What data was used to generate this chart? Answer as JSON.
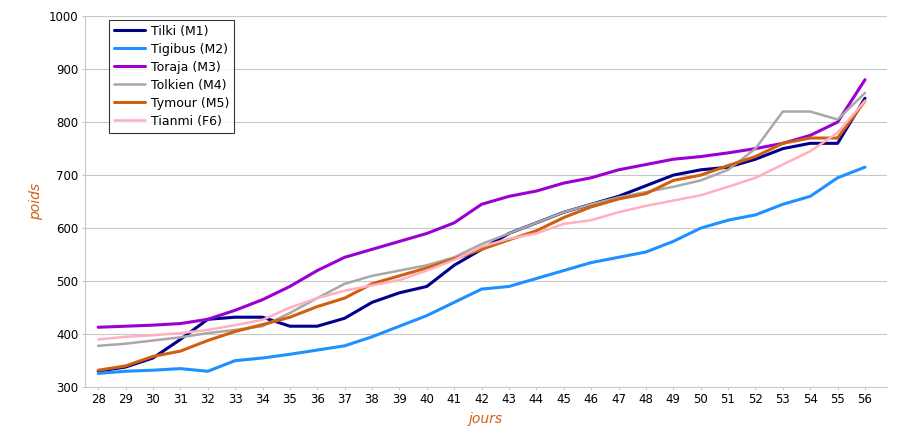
{
  "days": [
    28,
    29,
    30,
    31,
    32,
    33,
    34,
    35,
    36,
    37,
    38,
    39,
    40,
    41,
    42,
    43,
    44,
    45,
    46,
    47,
    48,
    49,
    50,
    51,
    52,
    53,
    54,
    55,
    56
  ],
  "Tilki_M1": [
    330,
    338,
    355,
    390,
    428,
    432,
    432,
    415,
    415,
    430,
    460,
    478,
    490,
    530,
    560,
    590,
    610,
    630,
    645,
    660,
    680,
    700,
    710,
    715,
    730,
    750,
    760,
    760,
    845
  ],
  "Tigibus_M2": [
    326,
    330,
    332,
    335,
    330,
    350,
    355,
    362,
    370,
    378,
    395,
    415,
    435,
    460,
    485,
    490,
    505,
    520,
    535,
    545,
    555,
    575,
    600,
    615,
    625,
    645,
    660,
    695,
    715
  ],
  "Toraja_M3": [
    413,
    415,
    417,
    420,
    428,
    445,
    465,
    490,
    520,
    545,
    560,
    575,
    590,
    610,
    645,
    660,
    670,
    685,
    695,
    710,
    720,
    730,
    735,
    742,
    750,
    760,
    775,
    800,
    880
  ],
  "Tolkien_M4": [
    378,
    382,
    388,
    394,
    402,
    408,
    415,
    440,
    468,
    495,
    510,
    520,
    530,
    545,
    570,
    590,
    610,
    630,
    645,
    658,
    668,
    678,
    690,
    710,
    750,
    820,
    820,
    805,
    855
  ],
  "Tymour_M5": [
    332,
    340,
    358,
    368,
    388,
    405,
    418,
    432,
    452,
    468,
    495,
    510,
    525,
    542,
    560,
    578,
    595,
    620,
    640,
    655,
    665,
    690,
    700,
    718,
    735,
    760,
    770,
    770,
    840
  ],
  "Tianmi_F6": [
    390,
    395,
    398,
    402,
    408,
    417,
    427,
    450,
    468,
    482,
    492,
    502,
    520,
    540,
    565,
    580,
    590,
    608,
    615,
    630,
    642,
    652,
    662,
    678,
    695,
    720,
    745,
    780,
    840
  ],
  "colors": {
    "Tilki_M1": "#00008B",
    "Tigibus_M2": "#1E90FF",
    "Toraja_M3": "#9B00D3",
    "Tolkien_M4": "#A8A8A8",
    "Tymour_M5": "#D06010",
    "Tianmi_F6": "#FFB0BE"
  },
  "legend_labels": {
    "Tilki_M1": "Tilki (M1)",
    "Tigibus_M2": "Tigibus (M2)",
    "Toraja_M3": "Toraja (M3)",
    "Tolkien_M4": "Tolkien (M4)",
    "Tymour_M5": "Tymour (M5)",
    "Tianmi_F6": "Tianmi (F6)"
  },
  "line_widths": {
    "Tilki_M1": 2.2,
    "Tigibus_M2": 2.2,
    "Toraja_M3": 2.2,
    "Tolkien_M4": 1.8,
    "Tymour_M5": 2.2,
    "Tianmi_F6": 1.8
  },
  "xlabel": "jours",
  "ylabel": "poids",
  "ylim": [
    300,
    1000
  ],
  "yticks": [
    300,
    400,
    500,
    600,
    700,
    800,
    900,
    1000
  ],
  "background_color": "#FFFFFF",
  "grid_color": "#C8C8C8",
  "axis_label_color": "#D06010"
}
